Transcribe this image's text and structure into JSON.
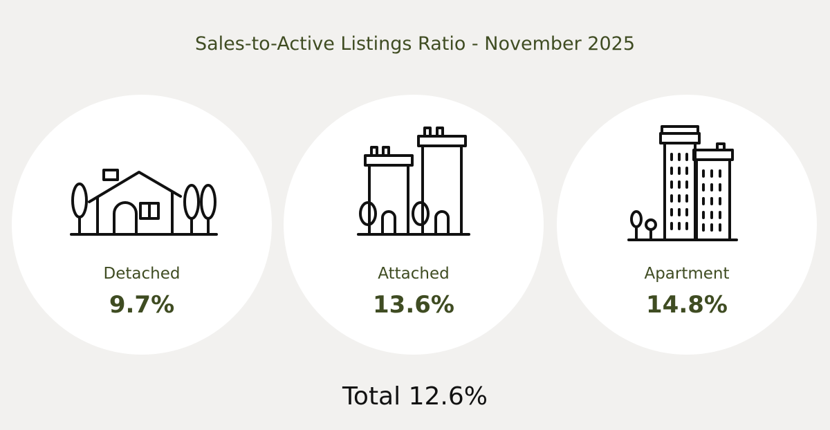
{
  "title": "Sales-to-Active Listings Ratio - November 2025",
  "cards": [
    {
      "label": "Detached",
      "value": "9.7%"
    },
    {
      "label": "Attached",
      "value": "13.6%"
    },
    {
      "label": "Apartment",
      "value": "14.8%"
    }
  ],
  "total": {
    "label": "Total",
    "value": "12.6%"
  }
}
